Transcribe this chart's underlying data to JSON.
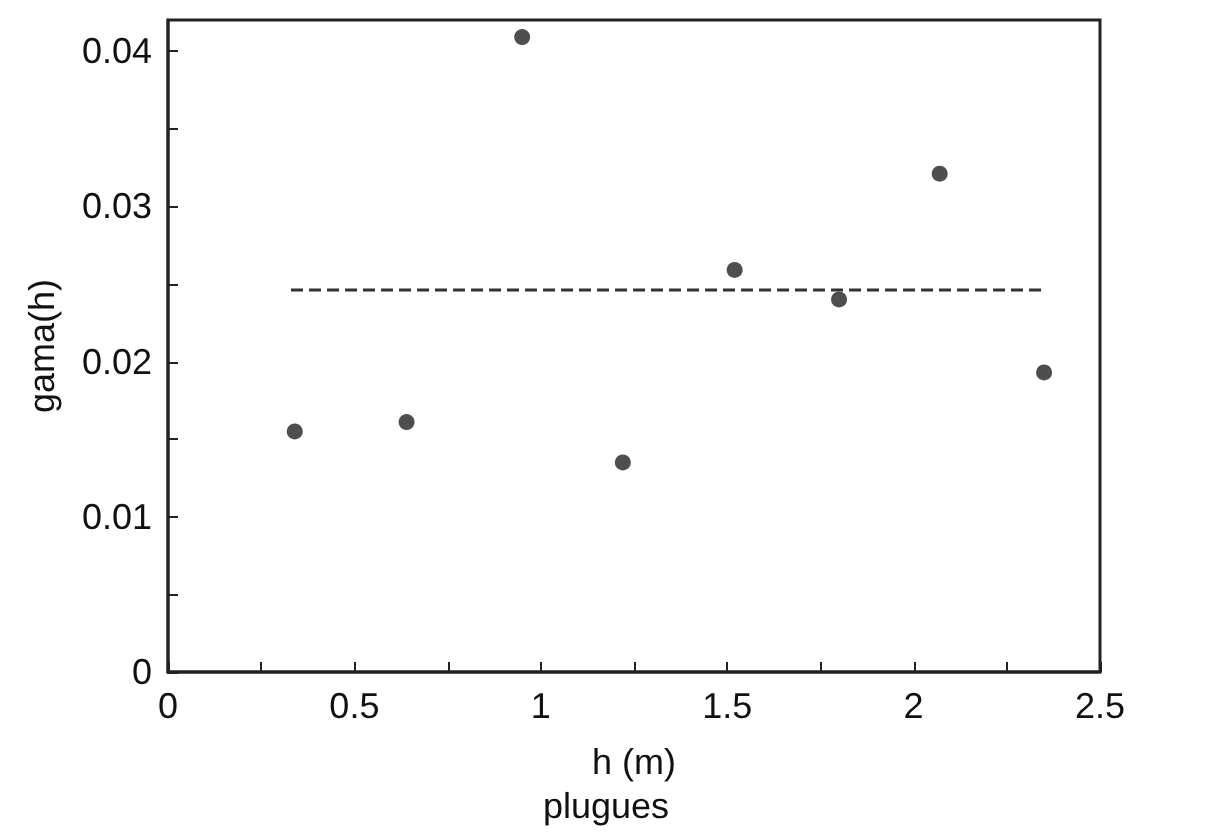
{
  "chart_data": {
    "type": "scatter",
    "xlabel": "h (m)",
    "ylabel": "gama(h)",
    "annotations": [
      "plugues"
    ],
    "xlim": [
      0,
      2.5
    ],
    "ylim": [
      0,
      0.042
    ],
    "xticks": [
      0,
      {
        "value": 0.25,
        "label": null
      },
      0.5,
      {
        "value": 0.75,
        "label": null
      },
      1,
      {
        "value": 1.25,
        "label": null
      },
      1.5,
      {
        "value": 1.75,
        "label": null
      },
      2,
      {
        "value": 2.25,
        "label": null
      },
      2.5
    ],
    "yticks": [
      0,
      {
        "value": 0.005,
        "label": null
      },
      0.01,
      {
        "value": 0.015,
        "label": null
      },
      0.02,
      {
        "value": 0.025,
        "label": null
      },
      0.03,
      {
        "value": 0.035,
        "label": null
      },
      0.04
    ],
    "grid": false,
    "marker": "circle",
    "series": [
      {
        "color": "#222222",
        "x": [
          0.34,
          0.64,
          0.95,
          1.22,
          1.52,
          1.8,
          2.07,
          2.35
        ],
        "values": [
          0.0155,
          0.0161,
          0.0409,
          0.0135,
          0.0259,
          0.024,
          0.0321,
          0.0193
        ]
      },
      {
        "type": "line",
        "color": "#333333",
        "line_style": "dashed",
        "marker": "none",
        "x": [
          0.33,
          2.35
        ],
        "values": [
          0.0246,
          0.0246
        ]
      }
    ]
  }
}
